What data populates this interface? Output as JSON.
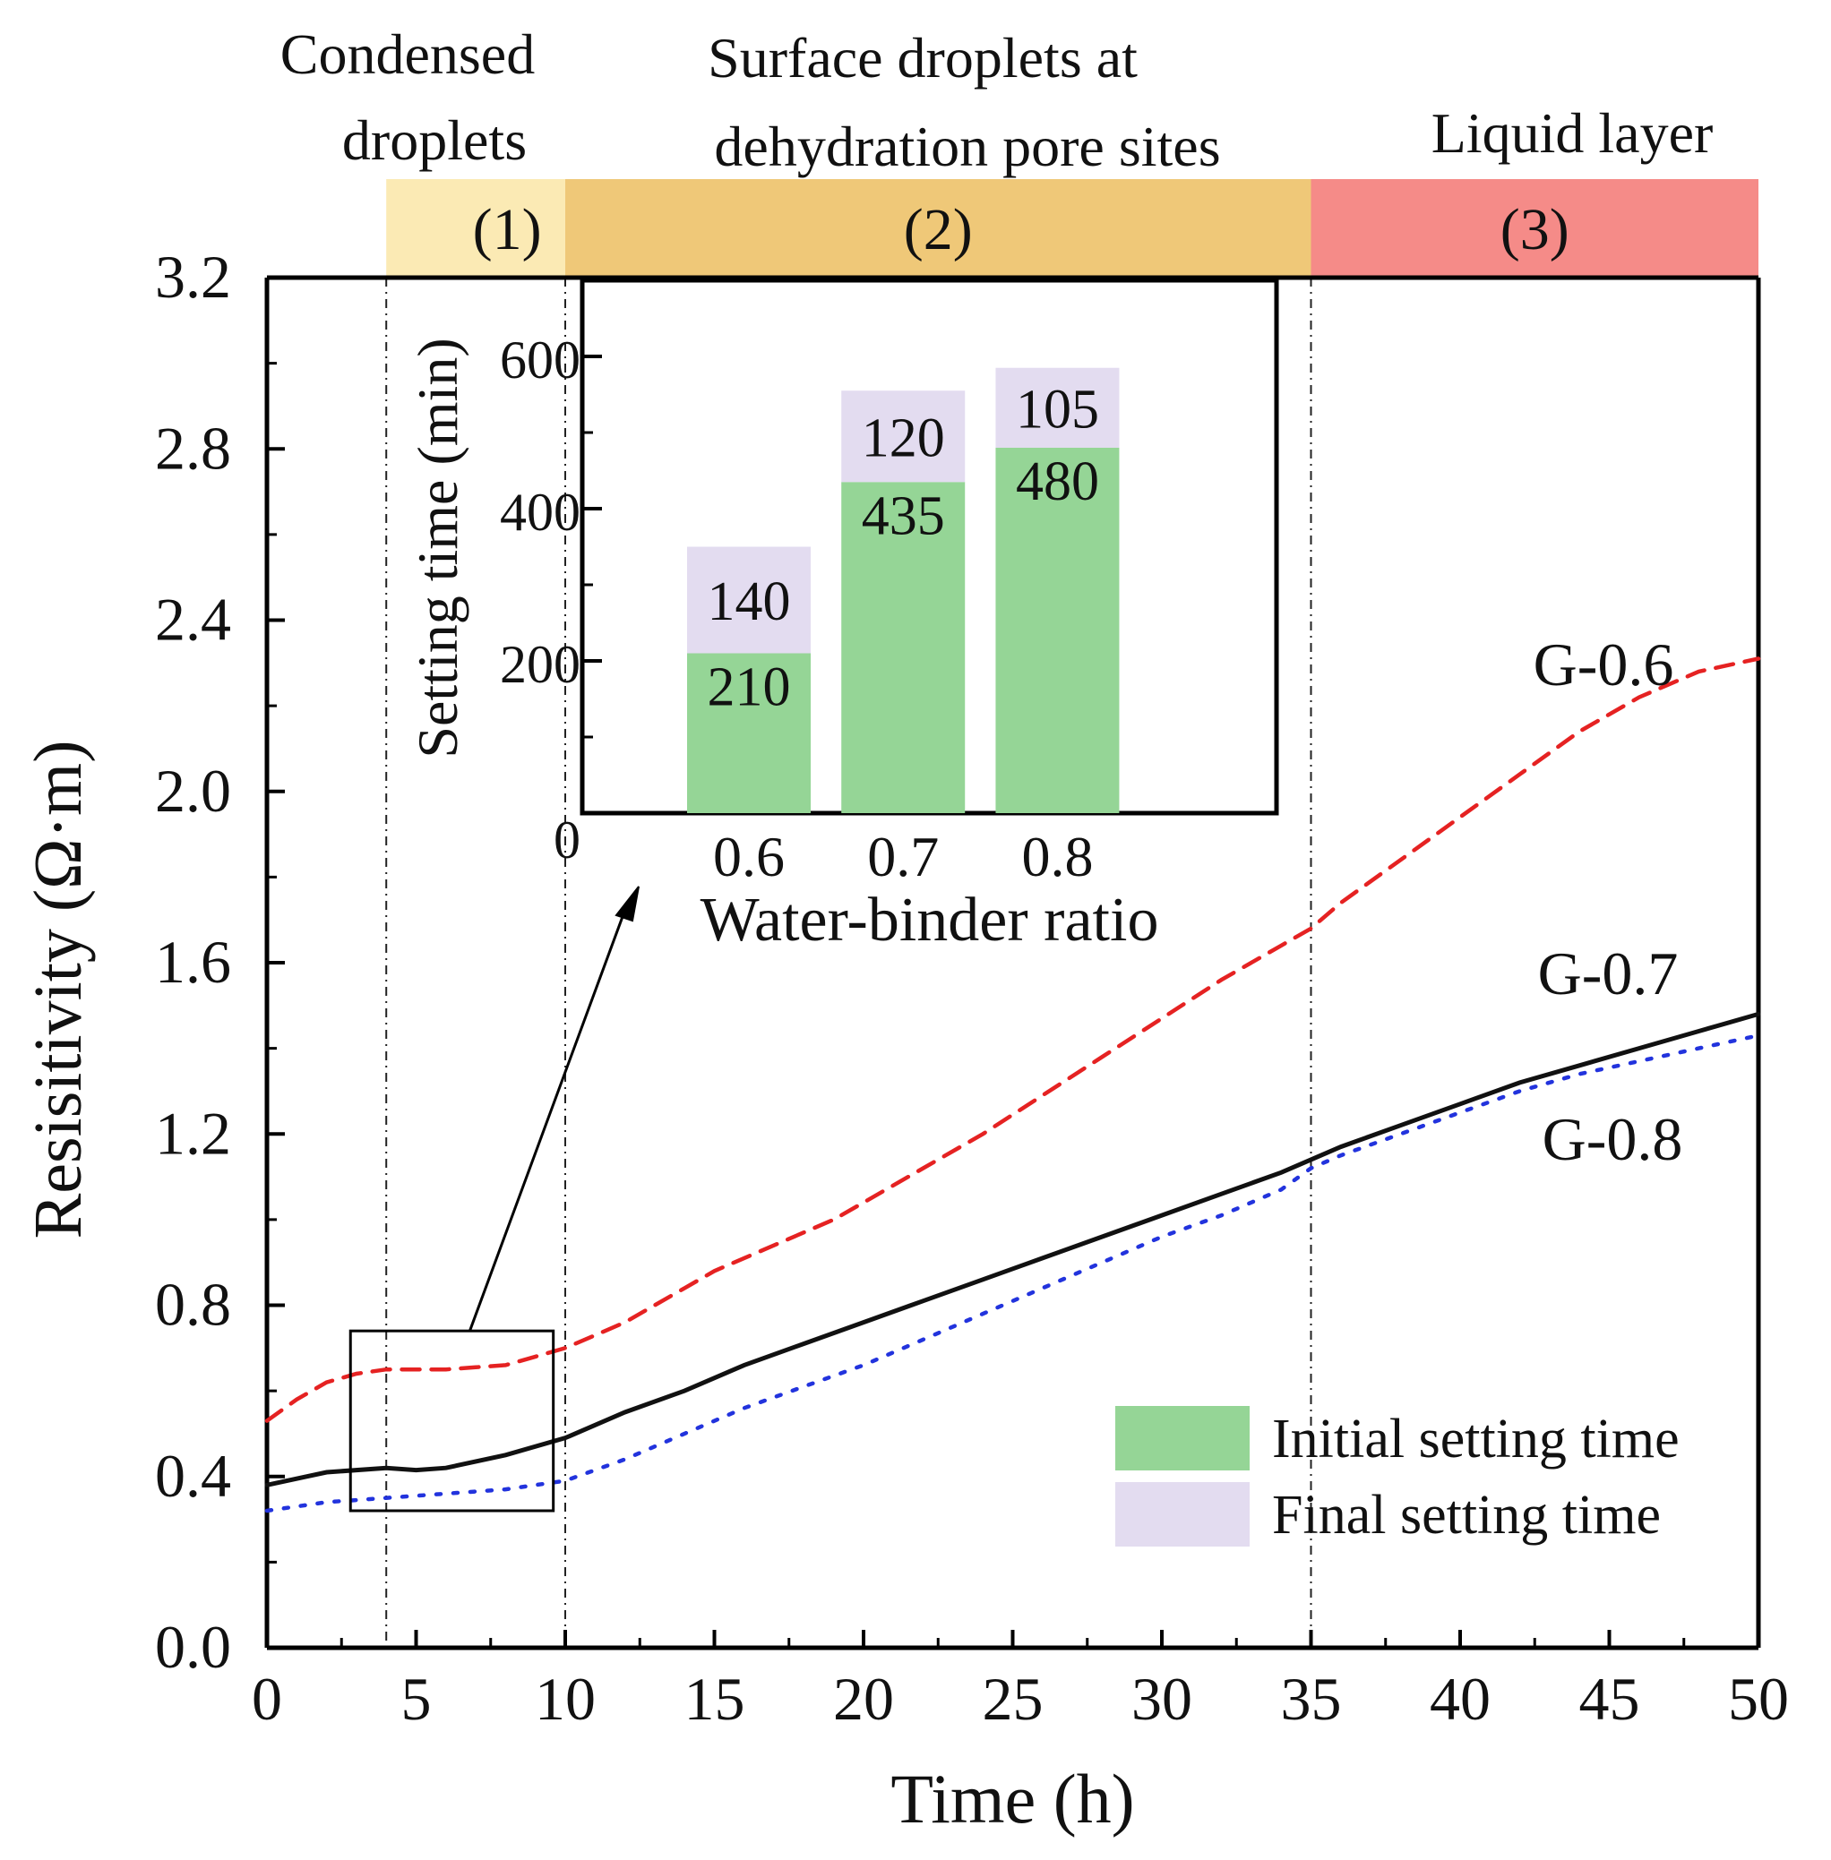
{
  "chart_data": [
    {
      "id": "main",
      "type": "line",
      "xlabel": "Time (h)",
      "ylabel": "Resisitivity (Ω·m)",
      "xlim": [
        0,
        50
      ],
      "ylim": [
        0,
        3.2
      ],
      "xticks": [
        0,
        5,
        10,
        15,
        20,
        25,
        30,
        35,
        40,
        45,
        50
      ],
      "yticks": [
        "0.0",
        "0.4",
        "0.8",
        "1.2",
        "1.6",
        "2.0",
        "2.4",
        "2.8",
        "3.2"
      ],
      "grid": false,
      "stages": [
        {
          "from": 4,
          "to": 10,
          "color": "#fbeab4",
          "label": "(1)",
          "title": [
            "Condensed",
            "droplets"
          ]
        },
        {
          "from": 10,
          "to": 35,
          "color": "#efc878",
          "label": "(2)",
          "title": [
            "Surface droplets at",
            "dehydration pore sites"
          ]
        },
        {
          "from": 35,
          "to": 50,
          "color": "#f58b88",
          "label": "(3)",
          "title": [
            "Liquid layer"
          ]
        }
      ],
      "boundaries": [
        4,
        10,
        35
      ],
      "zoom_box": {
        "x": [
          2.8,
          9.6
        ],
        "y": [
          0.32,
          0.74
        ]
      },
      "series": [
        {
          "name": "G-0.6",
          "color": "#e52222",
          "dash": "dashed",
          "x": [
            0,
            1,
            2,
            3,
            4,
            5,
            6,
            7,
            8,
            9,
            10,
            11,
            12,
            13,
            14,
            15,
            16,
            17,
            18,
            19,
            20,
            22,
            24,
            26,
            28,
            30,
            32,
            34,
            35,
            36,
            38,
            40,
            42,
            44,
            46,
            48,
            50
          ],
          "y": [
            0.53,
            0.58,
            0.62,
            0.64,
            0.65,
            0.65,
            0.65,
            0.655,
            0.66,
            0.68,
            0.7,
            0.73,
            0.76,
            0.8,
            0.84,
            0.88,
            0.91,
            0.94,
            0.97,
            1.0,
            1.04,
            1.12,
            1.2,
            1.29,
            1.38,
            1.47,
            1.56,
            1.64,
            1.68,
            1.74,
            1.84,
            1.94,
            2.04,
            2.14,
            2.22,
            2.28,
            2.31
          ]
        },
        {
          "name": "G-0.7",
          "color": "#111111",
          "dash": "solid",
          "x": [
            0,
            2,
            4,
            5,
            6,
            8,
            10,
            12,
            14,
            16,
            18,
            20,
            22,
            24,
            26,
            28,
            30,
            32,
            34,
            35,
            36,
            38,
            40,
            42,
            44,
            46,
            48,
            50
          ],
          "y": [
            0.38,
            0.41,
            0.42,
            0.415,
            0.42,
            0.45,
            0.49,
            0.55,
            0.6,
            0.66,
            0.71,
            0.76,
            0.81,
            0.86,
            0.91,
            0.96,
            1.01,
            1.06,
            1.11,
            1.14,
            1.17,
            1.22,
            1.27,
            1.32,
            1.36,
            1.4,
            1.44,
            1.48
          ]
        },
        {
          "name": "G-0.8",
          "color": "#2233dd",
          "dash": "dotted",
          "x": [
            0,
            2,
            4,
            6,
            8,
            10,
            12,
            14,
            16,
            18,
            20,
            22,
            24,
            26,
            28,
            30,
            32,
            34,
            35,
            36,
            38,
            40,
            42,
            44,
            46,
            48,
            50
          ],
          "y": [
            0.32,
            0.34,
            0.35,
            0.36,
            0.37,
            0.39,
            0.44,
            0.5,
            0.56,
            0.61,
            0.66,
            0.72,
            0.78,
            0.84,
            0.9,
            0.96,
            1.01,
            1.07,
            1.12,
            1.15,
            1.2,
            1.25,
            1.3,
            1.34,
            1.37,
            1.4,
            1.43
          ]
        }
      ],
      "legend": {
        "placement": "bottom-right",
        "entries": [
          {
            "label": "Initial setting time",
            "color": "#95d596"
          },
          {
            "label": "Final setting time",
            "color": "#e3dcf0"
          }
        ]
      }
    },
    {
      "id": "inset",
      "type": "bar",
      "stacked": true,
      "xlabel": "Water-binder ratio",
      "ylabel": "Setting time (min)",
      "categories": [
        "0.6",
        "0.7",
        "0.8"
      ],
      "ylim": [
        0,
        700
      ],
      "yticks": [
        "0",
        "200",
        "400",
        "600"
      ],
      "series": [
        {
          "name": "Initial setting time",
          "color": "#95d596",
          "values": [
            210,
            435,
            480
          ]
        },
        {
          "name": "Final setting time",
          "color": "#e3dcf0",
          "values": [
            140,
            120,
            105
          ]
        }
      ]
    }
  ]
}
